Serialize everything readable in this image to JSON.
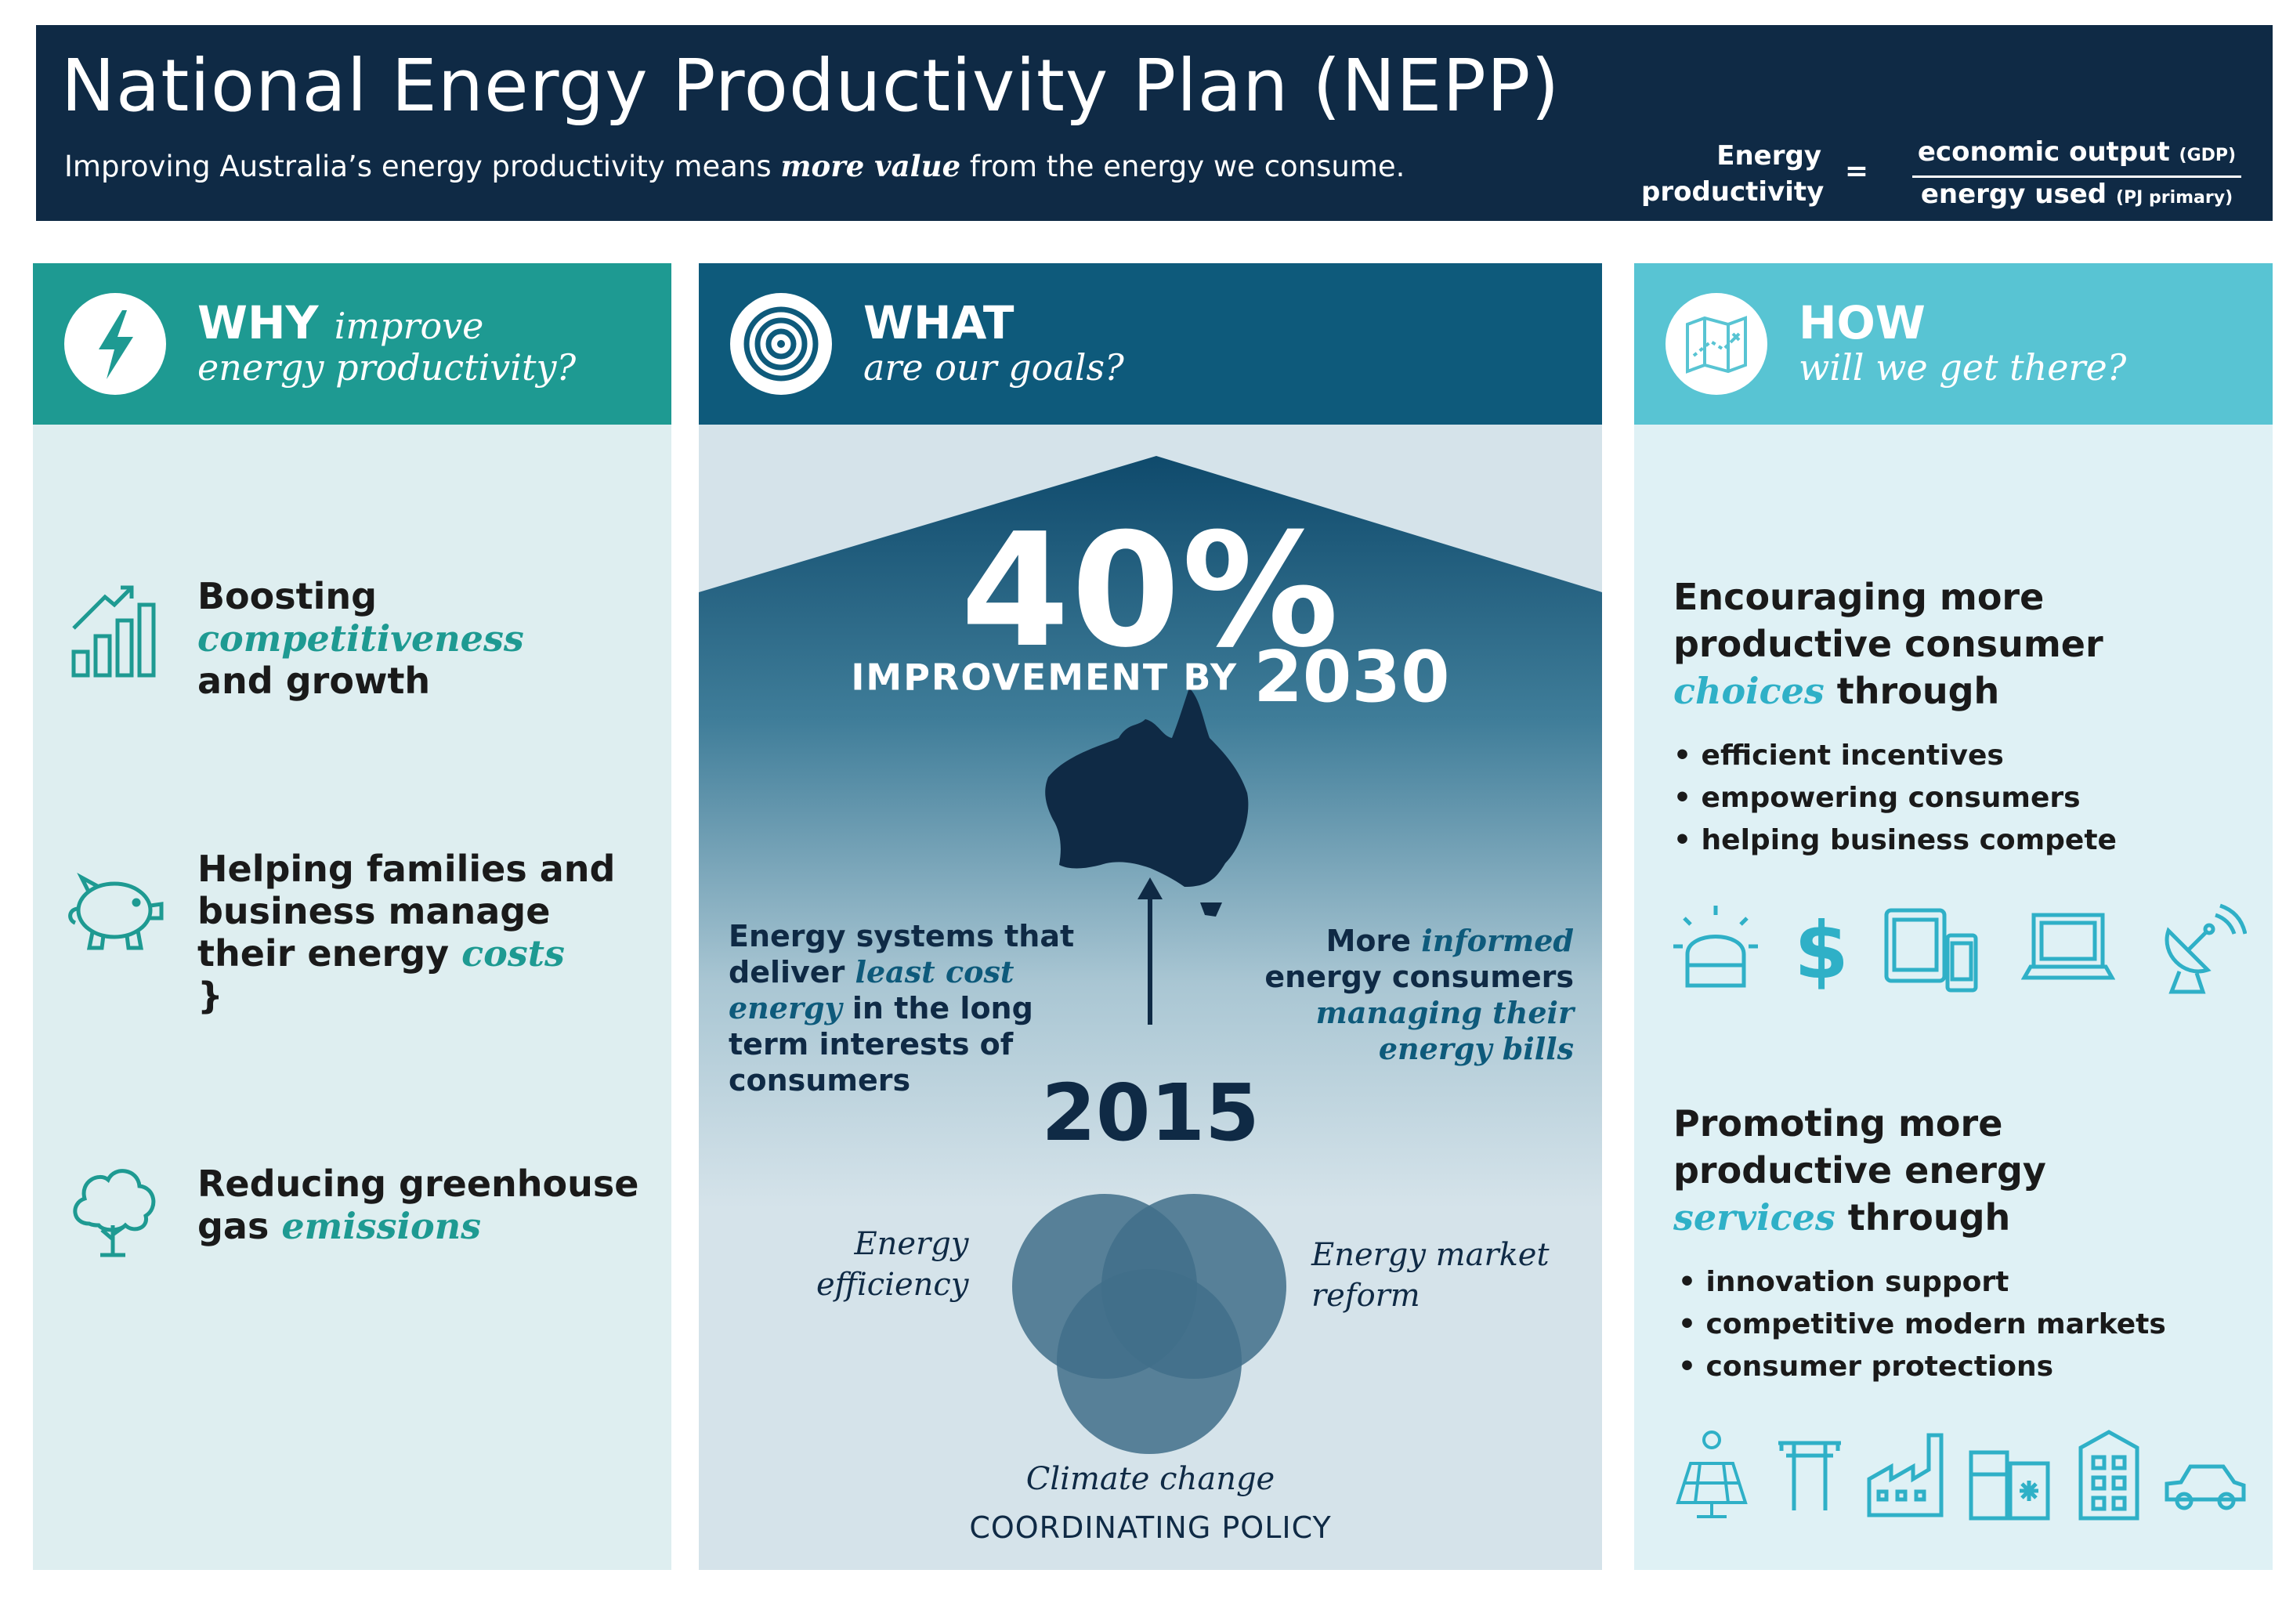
{
  "header": {
    "title": "National Energy Productivity Plan (NEPP)",
    "subtitle_before": "Improving Australia’s energy productivity means ",
    "subtitle_emphasis": "more value",
    "subtitle_after": " from the energy we consume.",
    "formula": {
      "label_line1": "Energy",
      "label_line2": "productivity",
      "equals": "=",
      "numerator": "economic output",
      "numerator_unit": "(GDP)",
      "denominator": "energy used",
      "denominator_unit": "(PJ primary)"
    }
  },
  "why": {
    "title": "WHY",
    "title_italic": "improve",
    "subtitle": "energy productivity?",
    "icon": "lightning-icon",
    "items": [
      {
        "icon": "growth-chart-icon",
        "line1": "Boosting",
        "line2_emph": "competitiveness",
        "line3": "and growth"
      },
      {
        "icon": "piggy-bank-icon",
        "line1": "Helping families and",
        "line2": "business manage",
        "line3_pre": "their energy ",
        "line3_emph": "costs"
      },
      {
        "icon": "tree-icon",
        "line1": "Reducing greenhouse",
        "line2_pre": "gas ",
        "line2_emph": "emissions"
      }
    ]
  },
  "what": {
    "title": "WHAT",
    "subtitle": "are our goals?",
    "icon": "target-icon",
    "percent": "40%",
    "improvement_label": "IMPROVEMENT BY",
    "target_year": "2030",
    "base_year": "2015",
    "goal_left": {
      "line1": "Energy systems that",
      "line2_pre": "deliver ",
      "line2_emph": "least cost",
      "line3_emph": "energy",
      "line3_post": " in the long",
      "line4": "term interests of",
      "line5": "consumers"
    },
    "goal_right": {
      "line1_pre": "More ",
      "line1_emph": "informed",
      "line2": "energy consumers",
      "line3_emph": "managing their",
      "line4_emph": "energy bills"
    },
    "venn": {
      "energy_efficiency_1": "Energy",
      "energy_efficiency_2": "efficiency",
      "market_reform_1": "Energy market",
      "market_reform_2": "reform",
      "climate_change": "Climate change"
    },
    "coordinating_policy": "COORDINATING POLICY"
  },
  "how": {
    "title": "HOW",
    "subtitle": "will we get there?",
    "icon": "map-icon",
    "section1": {
      "line1": "Encouraging more",
      "line2": "productive consumer",
      "line3_emph": "choices",
      "line3_post": " through",
      "bullets": [
        "efficient incentives",
        "empowering consumers",
        "helping business compete"
      ],
      "icons": [
        "light-icon",
        "dollar-icon",
        "devices-icon",
        "laptop-icon",
        "satellite-dish-icon"
      ]
    },
    "section2": {
      "line1": "Promoting more",
      "line2": "productive energy",
      "line3_emph": "services",
      "line3_post": " through",
      "bullets": [
        "innovation support",
        "competitive modern markets",
        "consumer protections"
      ],
      "icons": [
        "solar-panel-icon",
        "power-pole-icon",
        "factory-icon",
        "appliances-icon",
        "building-icon",
        "car-icon"
      ]
    }
  },
  "colors": {
    "banner": "#0f2a45",
    "why_teal": "#1e9a92",
    "what_blue": "#0e5a7b",
    "how_cyan": "#58c4d3"
  }
}
